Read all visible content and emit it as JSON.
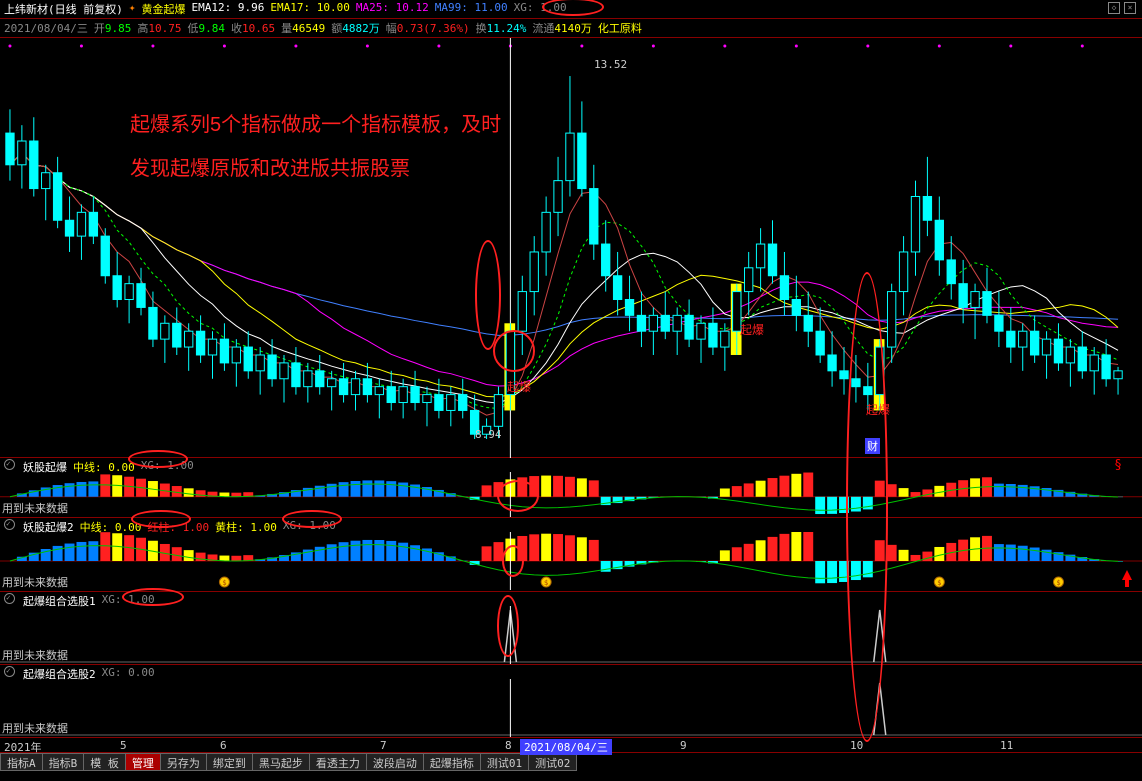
{
  "header": {
    "stock_name": "上纬新材(日线 前复权)",
    "indicator_name": "黄金起爆",
    "ema12_label": "EMA12:",
    "ema12_val": "9.96",
    "ema17_label": "EMA17:",
    "ema17_val": "10.00",
    "ma25_label": "MA25:",
    "ma25_val": "10.12",
    "ma99_label": "MA99:",
    "ma99_val": "11.00",
    "xg_label": "XG:",
    "xg_val": "1.00"
  },
  "header2": {
    "date": "2021/08/04/三",
    "open_label": "开",
    "open_val": "9.85",
    "high_label": "高",
    "high_val": "10.75",
    "low_label": "低",
    "low_val": "9.84",
    "close_label": "收",
    "close_val": "10.65",
    "vol_label": "量",
    "vol_val": "46549",
    "amt_label": "额",
    "amt_val": "4882万",
    "amp_label": "幅",
    "amp_val": "0.73(7.36%)",
    "turn_label": "换",
    "turn_val": "11.24%",
    "float_label": "流通",
    "float_val": "4140万",
    "sector": "化工原料"
  },
  "annotation": {
    "line1": "起爆系列5个指标做成一个指标模板，及时",
    "line2": "发现起爆原版和改进版共振股票"
  },
  "peak_high": "13.52",
  "peak_low": "8.94",
  "signal_labels": [
    "起爆",
    "起爆",
    "起爆",
    "起爆"
  ],
  "cai_label": "财",
  "ind1": {
    "name": "妖股起爆",
    "mid_label": "中线:",
    "mid_val": "0.00",
    "xg_label": "XG:",
    "xg_val": "1.00",
    "future": "用到未来数据"
  },
  "ind2": {
    "name": "妖股起爆2",
    "mid_label": "中线:",
    "mid_val": "0.00",
    "red_label": "红柱:",
    "red_val": "1.00",
    "yellow_label": "黄柱:",
    "yellow_val": "1.00",
    "xg_label": "XG:",
    "xg_val": "1.00",
    "future": "用到未来数据"
  },
  "ind3": {
    "name": "起爆组合选股1",
    "xg_label": "XG:",
    "xg_val": "1.00",
    "future": "用到未来数据"
  },
  "ind4": {
    "name": "起爆组合选股2",
    "xg_label": "XG:",
    "xg_val": "0.00",
    "future": "用到未来数据"
  },
  "time_axis": {
    "year": "2021年",
    "m5": "5",
    "m6": "6",
    "m7": "7",
    "m8": "8",
    "date_box": "2021/08/04/三",
    "m9": "9",
    "m10": "10",
    "m11": "11"
  },
  "tabs": [
    "指标A",
    "指标B",
    "模 板",
    "管理",
    "另存为",
    "绑定到",
    "黑马起步",
    "看透主力",
    "波段启动",
    "起爆指标",
    "测试01",
    "测试02"
  ],
  "active_tab_index": 3,
  "colors": {
    "bg": "#000000",
    "grid": "#800000",
    "up": "#00ffff",
    "down": "#ff2020",
    "yellow_bar": "#ffff00",
    "red_bar": "#ff2020",
    "blue_bar": "#0080ff",
    "cyan_bar": "#00ffff",
    "green_bar": "#00c000",
    "ema12": "#ffffff",
    "ema17": "#ffff00",
    "ma25": "#ff00ff",
    "ma99": "#4080ff",
    "green_dash": "#00ff00",
    "annotation": "#ff2020"
  },
  "candles": [
    [
      12.8,
      13.1,
      12.2,
      12.4
    ],
    [
      12.4,
      12.9,
      12.1,
      12.7
    ],
    [
      12.7,
      13.0,
      12.0,
      12.1
    ],
    [
      12.1,
      12.4,
      11.7,
      12.3
    ],
    [
      12.3,
      12.5,
      11.6,
      11.7
    ],
    [
      11.7,
      12.0,
      11.3,
      11.5
    ],
    [
      11.5,
      11.9,
      11.2,
      11.8
    ],
    [
      11.8,
      12.0,
      11.4,
      11.5
    ],
    [
      11.5,
      11.6,
      10.9,
      11.0
    ],
    [
      11.0,
      11.3,
      10.6,
      10.7
    ],
    [
      10.7,
      11.0,
      10.4,
      10.9
    ],
    [
      10.9,
      11.1,
      10.5,
      10.6
    ],
    [
      10.6,
      10.8,
      10.1,
      10.2
    ],
    [
      10.2,
      10.5,
      9.9,
      10.4
    ],
    [
      10.4,
      10.6,
      10.0,
      10.1
    ],
    [
      10.1,
      10.4,
      9.8,
      10.3
    ],
    [
      10.3,
      10.5,
      9.9,
      10.0
    ],
    [
      10.0,
      10.3,
      9.7,
      10.2
    ],
    [
      10.2,
      10.4,
      9.8,
      9.9
    ],
    [
      9.9,
      10.2,
      9.6,
      10.1
    ],
    [
      10.1,
      10.3,
      9.7,
      9.8
    ],
    [
      9.8,
      10.1,
      9.5,
      10.0
    ],
    [
      10.0,
      10.2,
      9.6,
      9.7
    ],
    [
      9.7,
      10.0,
      9.4,
      9.9
    ],
    [
      9.9,
      10.1,
      9.5,
      9.6
    ],
    [
      9.6,
      9.9,
      9.4,
      9.8
    ],
    [
      9.8,
      10.0,
      9.5,
      9.6
    ],
    [
      9.6,
      9.8,
      9.3,
      9.7
    ],
    [
      9.7,
      9.9,
      9.4,
      9.5
    ],
    [
      9.5,
      9.8,
      9.3,
      9.7
    ],
    [
      9.7,
      9.9,
      9.4,
      9.5
    ],
    [
      9.5,
      9.7,
      9.2,
      9.6
    ],
    [
      9.6,
      9.8,
      9.3,
      9.4
    ],
    [
      9.4,
      9.7,
      9.2,
      9.6
    ],
    [
      9.6,
      9.8,
      9.3,
      9.4
    ],
    [
      9.4,
      9.6,
      9.1,
      9.5
    ],
    [
      9.5,
      9.7,
      9.2,
      9.3
    ],
    [
      9.3,
      9.6,
      9.1,
      9.5
    ],
    [
      9.5,
      9.7,
      9.2,
      9.3
    ],
    [
      9.3,
      9.5,
      8.94,
      9.0
    ],
    [
      9.0,
      9.2,
      8.94,
      9.1
    ],
    [
      9.1,
      9.6,
      8.95,
      9.5
    ],
    [
      9.5,
      10.4,
      9.3,
      10.3
    ],
    [
      10.3,
      11.0,
      10.0,
      10.8
    ],
    [
      10.8,
      11.5,
      10.5,
      11.3
    ],
    [
      11.3,
      12.0,
      11.0,
      11.8
    ],
    [
      11.8,
      12.5,
      11.5,
      12.2
    ],
    [
      12.2,
      13.52,
      12.0,
      12.8
    ],
    [
      12.8,
      13.2,
      12.0,
      12.1
    ],
    [
      12.1,
      12.4,
      11.2,
      11.4
    ],
    [
      11.4,
      11.7,
      10.8,
      11.0
    ],
    [
      11.0,
      11.3,
      10.5,
      10.7
    ],
    [
      10.7,
      11.0,
      10.3,
      10.5
    ],
    [
      10.5,
      10.8,
      10.1,
      10.3
    ],
    [
      10.3,
      10.6,
      10.0,
      10.5
    ],
    [
      10.5,
      10.8,
      10.2,
      10.3
    ],
    [
      10.3,
      10.6,
      10.0,
      10.5
    ],
    [
      10.5,
      10.7,
      10.1,
      10.2
    ],
    [
      10.2,
      10.5,
      9.9,
      10.4
    ],
    [
      10.4,
      10.6,
      10.0,
      10.1
    ],
    [
      10.1,
      10.4,
      9.8,
      10.3
    ],
    [
      10.3,
      10.9,
      10.0,
      10.8
    ],
    [
      10.8,
      11.3,
      10.5,
      11.1
    ],
    [
      11.1,
      11.6,
      10.8,
      11.4
    ],
    [
      11.4,
      11.7,
      10.9,
      11.0
    ],
    [
      11.0,
      11.3,
      10.5,
      10.7
    ],
    [
      10.7,
      11.0,
      10.3,
      10.5
    ],
    [
      10.5,
      10.8,
      10.1,
      10.3
    ],
    [
      10.3,
      10.6,
      9.9,
      10.0
    ],
    [
      10.0,
      10.3,
      9.6,
      9.8
    ],
    [
      9.8,
      10.1,
      9.5,
      9.7
    ],
    [
      9.7,
      10.0,
      9.4,
      9.6
    ],
    [
      9.6,
      9.9,
      9.3,
      9.5
    ],
    [
      9.5,
      10.2,
      9.3,
      10.1
    ],
    [
      10.1,
      10.9,
      9.9,
      10.8
    ],
    [
      10.8,
      11.5,
      10.5,
      11.3
    ],
    [
      11.3,
      12.2,
      11.0,
      12.0
    ],
    [
      12.0,
      12.5,
      11.5,
      11.7
    ],
    [
      11.7,
      12.0,
      11.0,
      11.2
    ],
    [
      11.2,
      11.5,
      10.7,
      10.9
    ],
    [
      10.9,
      11.2,
      10.4,
      10.6
    ],
    [
      10.6,
      10.9,
      10.2,
      10.8
    ],
    [
      10.8,
      11.1,
      10.4,
      10.5
    ],
    [
      10.5,
      10.8,
      10.1,
      10.3
    ],
    [
      10.3,
      10.6,
      9.9,
      10.1
    ],
    [
      10.1,
      10.4,
      9.8,
      10.3
    ],
    [
      10.3,
      10.5,
      9.9,
      10.0
    ],
    [
      10.0,
      10.3,
      9.7,
      10.2
    ],
    [
      10.2,
      10.4,
      9.8,
      9.9
    ],
    [
      9.9,
      10.2,
      9.6,
      10.1
    ],
    [
      10.1,
      10.3,
      9.7,
      9.8
    ],
    [
      9.8,
      10.1,
      9.5,
      10.0
    ],
    [
      10.0,
      10.2,
      9.6,
      9.7
    ],
    [
      9.7,
      9.85,
      9.5,
      9.8
    ]
  ]
}
